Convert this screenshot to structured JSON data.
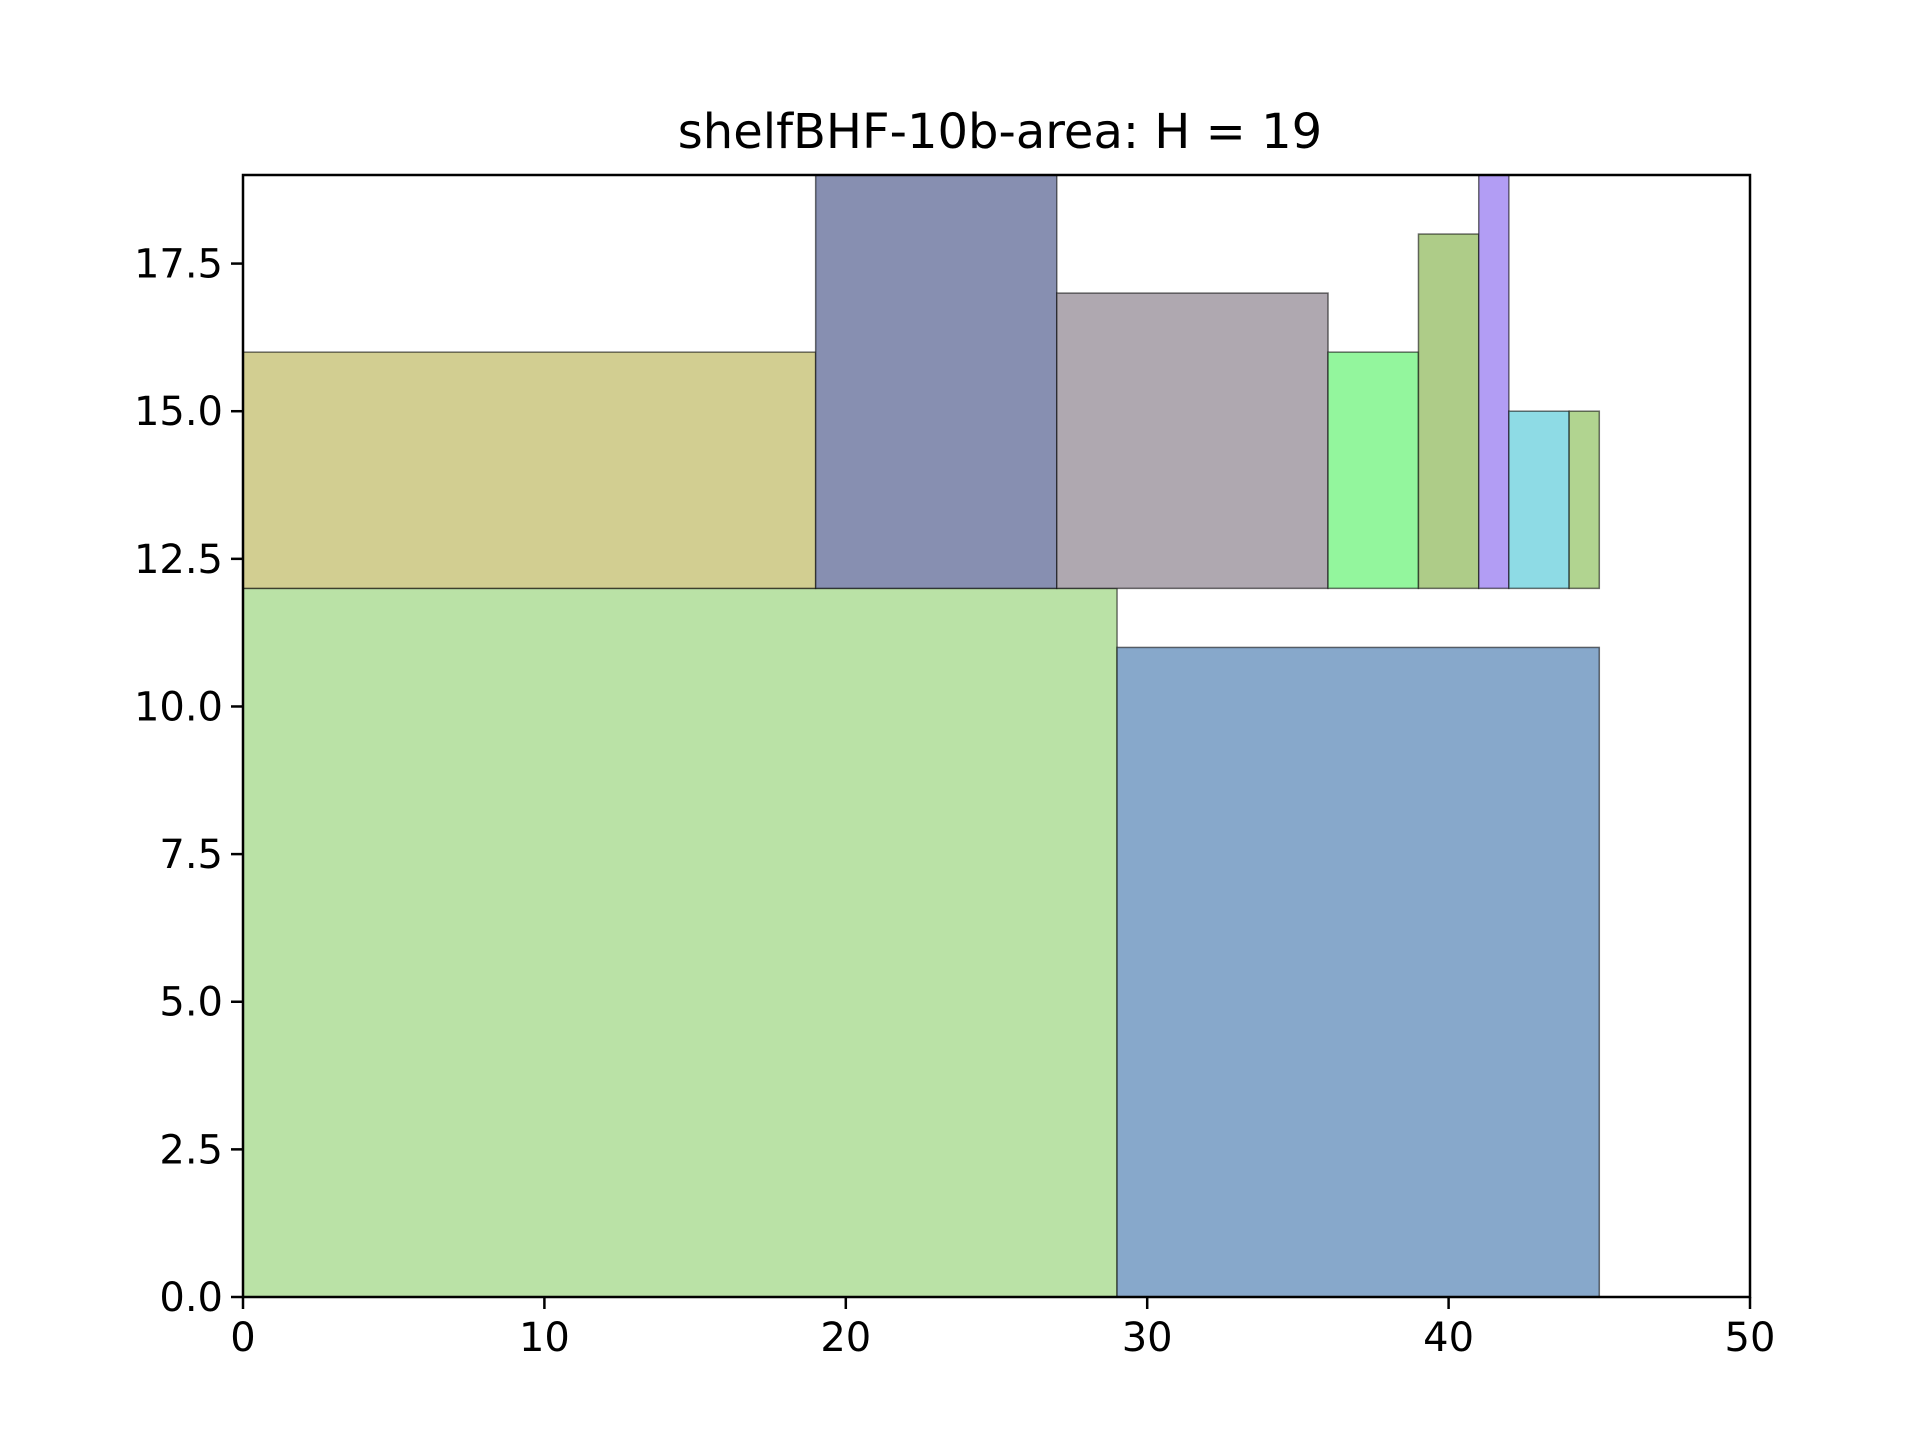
{
  "chart_data": {
    "type": "rectangles",
    "title": "shelfBHF-10b-area: H = 19",
    "xlabel": "",
    "ylabel": "",
    "xlim": [
      0,
      50
    ],
    "ylim": [
      0,
      19
    ],
    "grid": false,
    "x_ticks": [
      0,
      10,
      20,
      30,
      40,
      50
    ],
    "x_tick_labels": [
      "0",
      "10",
      "20",
      "30",
      "40",
      "50"
    ],
    "y_ticks": [
      0,
      2.5,
      5,
      7.5,
      10,
      12.5,
      15,
      17.5
    ],
    "y_tick_labels": [
      "0.0",
      "2.5",
      "5.0",
      "7.5",
      "10.0",
      "12.5",
      "15.0",
      "17.5"
    ],
    "rectangles": [
      {
        "x": 0,
        "y": 0,
        "w": 29,
        "h": 12,
        "color": "#bae2a6"
      },
      {
        "x": 29,
        "y": 0,
        "w": 16,
        "h": 11,
        "color": "#87a8cb"
      },
      {
        "x": 0,
        "y": 12,
        "w": 19,
        "h": 4,
        "color": "#d2ce91"
      },
      {
        "x": 19,
        "y": 12,
        "w": 8,
        "h": 7,
        "color": "#878fb1"
      },
      {
        "x": 27,
        "y": 12,
        "w": 9,
        "h": 5,
        "color": "#afa8b0"
      },
      {
        "x": 36,
        "y": 12,
        "w": 3,
        "h": 4,
        "color": "#93f69d"
      },
      {
        "x": 39,
        "y": 12,
        "w": 2,
        "h": 6,
        "color": "#aecc88"
      },
      {
        "x": 41,
        "y": 12,
        "w": 1,
        "h": 7,
        "color": "#b29df4"
      },
      {
        "x": 42,
        "y": 12,
        "w": 2,
        "h": 3,
        "color": "#8edbe5"
      },
      {
        "x": 44,
        "y": 12,
        "w": 1,
        "h": 3,
        "color": "#b1d490"
      }
    ]
  }
}
